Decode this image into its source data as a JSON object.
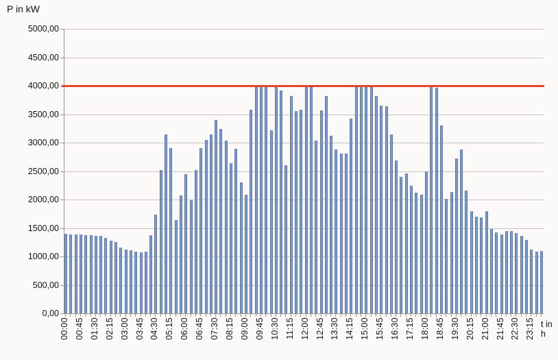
{
  "title": "P in kW",
  "x_axis_label": "t in h",
  "chart_data": {
    "type": "bar",
    "title": "P in kW",
    "xlabel": "t in h",
    "ylabel": "",
    "ylim": [
      0,
      5000
    ],
    "y_step": 500,
    "grid": true,
    "legend": "none",
    "x": [
      "00:00",
      "00:15",
      "00:30",
      "00:45",
      "01:00",
      "01:15",
      "01:30",
      "01:45",
      "02:00",
      "02:15",
      "02:30",
      "02:45",
      "03:00",
      "03:15",
      "03:30",
      "03:45",
      "04:00",
      "04:15",
      "04:30",
      "04:45",
      "05:00",
      "05:15",
      "05:30",
      "05:45",
      "06:00",
      "06:15",
      "06:30",
      "06:45",
      "07:00",
      "07:15",
      "07:30",
      "07:45",
      "08:00",
      "08:15",
      "08:30",
      "08:45",
      "09:00",
      "09:15",
      "09:30",
      "09:45",
      "10:00",
      "10:15",
      "10:30",
      "10:45",
      "11:00",
      "11:15",
      "11:30",
      "11:45",
      "12:00",
      "12:15",
      "12:30",
      "12:45",
      "13:00",
      "13:15",
      "13:30",
      "13:45",
      "14:00",
      "14:15",
      "14:30",
      "14:45",
      "15:00",
      "15:15",
      "15:30",
      "15:45",
      "16:00",
      "16:15",
      "16:30",
      "16:45",
      "17:00",
      "17:15",
      "17:30",
      "17:45",
      "18:00",
      "18:15",
      "18:30",
      "18:45",
      "19:00",
      "19:15",
      "19:30",
      "19:45",
      "20:00",
      "20:15",
      "20:30",
      "20:45",
      "21:00",
      "21:15",
      "21:30",
      "21:45",
      "22:00",
      "22:15",
      "22:30",
      "22:45",
      "23:00",
      "23:15",
      "23:30",
      "23:45"
    ],
    "values": [
      1400,
      1390,
      1380,
      1380,
      1375,
      1370,
      1360,
      1360,
      1320,
      1280,
      1250,
      1160,
      1120,
      1110,
      1090,
      1070,
      1090,
      1370,
      1740,
      2520,
      3150,
      2900,
      1640,
      2070,
      2440,
      1990,
      2520,
      2900,
      3050,
      3150,
      3400,
      3240,
      3040,
      2640,
      2890,
      2300,
      2090,
      3580,
      4000,
      4000,
      4000,
      3220,
      4000,
      3920,
      2600,
      3820,
      3560,
      3580,
      4000,
      3990,
      3040,
      3570,
      3820,
      3120,
      2880,
      2810,
      2810,
      3420,
      4000,
      4000,
      4000,
      4000,
      3820,
      3650,
      3640,
      3150,
      2690,
      2400,
      2460,
      2240,
      2120,
      2080,
      2500,
      4000,
      3970,
      3300,
      2010,
      2130,
      2720,
      2880,
      2160,
      1800,
      1700,
      1690,
      1800,
      1480,
      1420,
      1390,
      1440,
      1440,
      1410,
      1360,
      1290,
      1120,
      1080,
      1100
    ],
    "x_tick_labels": [
      "00:00",
      "00:45",
      "01:30",
      "02:15",
      "03:00",
      "03:45",
      "04:30",
      "05:15",
      "06:00",
      "06:45",
      "07:30",
      "08:15",
      "09:00",
      "09:45",
      "10:30",
      "11:15",
      "12:00",
      "12:45",
      "13:30",
      "14:15",
      "15:00",
      "15:45",
      "16:30",
      "17:15",
      "18:00",
      "18:45",
      "19:30",
      "20:15",
      "21:00",
      "21:45",
      "22:30",
      "23:15"
    ],
    "x_tick_every": 3,
    "y_tick_labels": [
      "0,00",
      "500,00",
      "1000,00",
      "1500,00",
      "2000,00",
      "2500,00",
      "3000,00",
      "3500,00",
      "4000,00",
      "4500,00",
      "5000,00"
    ],
    "bar_color": "#7e9bce",
    "bar_border_color": "#5a77ab",
    "gridline_color": "#c6c3bf",
    "threshold_line": {
      "value": 4000,
      "color": "#e2452a"
    }
  }
}
